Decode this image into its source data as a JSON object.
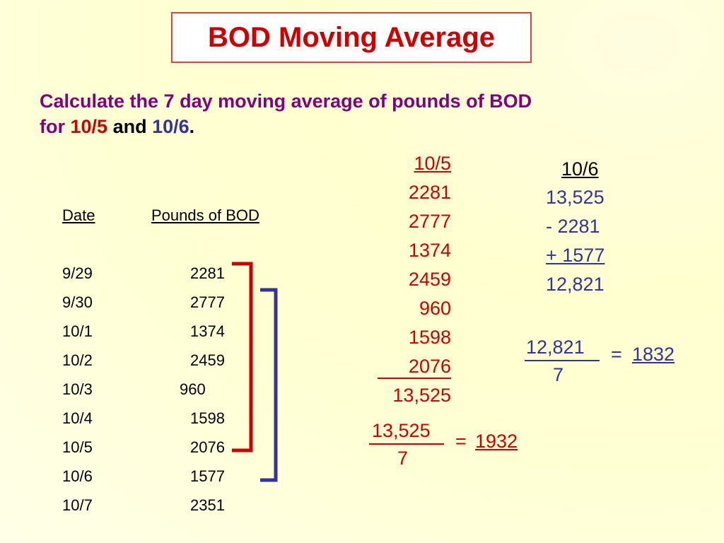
{
  "slide": {
    "title": "BOD Moving Average",
    "prompt": {
      "part1": "Calculate the 7 day moving average of  pounds of BOD",
      "part2": "for ",
      "date1": "10/5",
      "and": " and ",
      "date2": "10/6",
      "period": "."
    }
  },
  "table": {
    "headers": {
      "date": "Date",
      "pounds": "Pounds of BOD"
    },
    "rows": [
      {
        "date": "9/29",
        "pounds": "2281"
      },
      {
        "date": "9/30",
        "pounds": "2777"
      },
      {
        "date": "10/1",
        "pounds": "1374"
      },
      {
        "date": "10/2",
        "pounds": "2459"
      },
      {
        "date": "10/3",
        "pounds": "960"
      },
      {
        "date": "10/4",
        "pounds": "1598"
      },
      {
        "date": "10/5",
        "pounds": "2076"
      },
      {
        "date": "10/6",
        "pounds": "1577"
      },
      {
        "date": "10/7",
        "pounds": "2351"
      }
    ]
  },
  "calc_10_5": {
    "header": "10/5",
    "values": [
      "2281",
      "2777",
      "1374",
      "2459",
      "960",
      "1598",
      "2076"
    ],
    "sum": "13,525",
    "numerator": "13,525",
    "denominator": "7",
    "equals": "=",
    "result": "1932"
  },
  "calc_10_6": {
    "header": "10/6",
    "start": "13,525",
    "minus": "-  2281",
    "plus": "+ 1577",
    "total": "12,821",
    "numerator": "12,821",
    "denominator": "7",
    "equals": "=",
    "result": "1832"
  },
  "colors": {
    "title_red": "#cc0000",
    "prompt_purple": "#800080",
    "accent_blue": "#333399",
    "bracket_red": "#cc0000",
    "bracket_blue": "#333399"
  }
}
